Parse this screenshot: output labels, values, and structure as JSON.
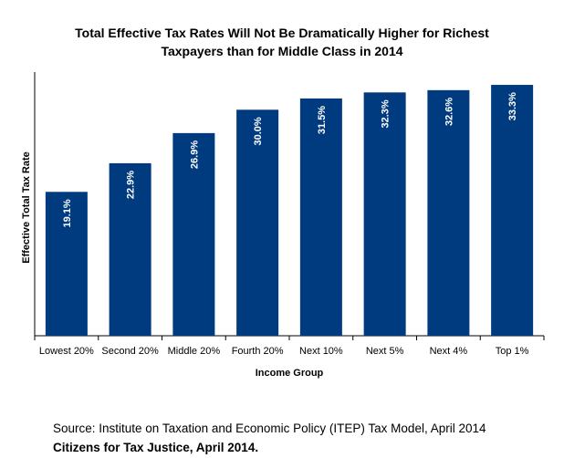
{
  "chart_data": {
    "type": "bar",
    "title_line1": "Total Effective Tax Rates Will Not Be Dramatically Higher for Richest",
    "title_line2": "Taxpayers than for Middle Class in 2014",
    "xlabel": "Income Group",
    "ylabel": "Effective Total Tax Rate",
    "categories": [
      "Lowest 20%",
      "Second 20%",
      "Middle 20%",
      "Fourth 20%",
      "Next 10%",
      "Next 5%",
      "Next 4%",
      "Top 1%"
    ],
    "values": [
      19.1,
      22.9,
      26.9,
      30.0,
      31.5,
      32.3,
      32.6,
      33.3
    ],
    "data_labels": [
      "19.1%",
      "22.9%",
      "26.9%",
      "30.0%",
      "31.5%",
      "32.3%",
      "32.6%",
      "33.3%"
    ],
    "ylim": [
      0,
      35
    ],
    "grid": false,
    "colors": {
      "bar": "#003B7F",
      "label": "#ffffff",
      "axis": "#000000"
    }
  },
  "footer": {
    "source": "Source: Institute on Taxation and Economic Policy (ITEP) Tax Model, April 2014",
    "credit": "Citizens for Tax Justice, April 2014."
  }
}
